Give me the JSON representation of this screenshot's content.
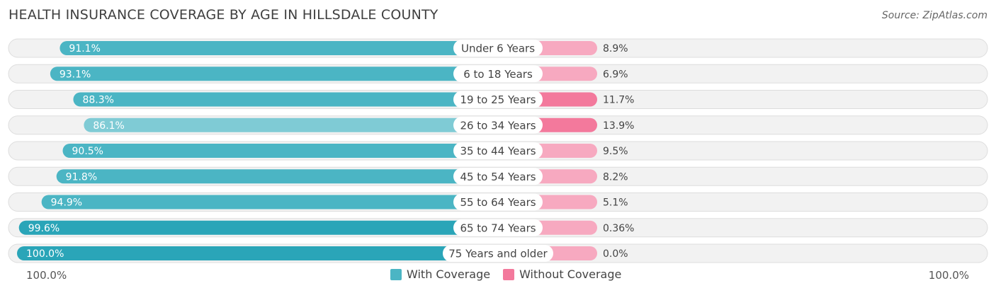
{
  "chart_data": {
    "type": "bar",
    "orientation": "horizontal-diverging",
    "title": "HEALTH INSURANCE COVERAGE BY AGE IN HILLSDALE COUNTY",
    "source": "Source: ZipAtlas.com",
    "categories": [
      "Under 6 Years",
      "6 to 18 Years",
      "19 to 25 Years",
      "26 to 34 Years",
      "35 to 44 Years",
      "45 to 54 Years",
      "55 to 64 Years",
      "65 to 74 Years",
      "75 Years and older"
    ],
    "series": [
      {
        "name": "With Coverage",
        "values": [
          91.1,
          93.1,
          88.3,
          86.1,
          90.5,
          91.8,
          94.9,
          99.6,
          100.0
        ],
        "labels": [
          "91.1%",
          "93.1%",
          "88.3%",
          "86.1%",
          "90.5%",
          "91.8%",
          "94.9%",
          "99.6%",
          "100.0%"
        ]
      },
      {
        "name": "Without Coverage",
        "values": [
          8.9,
          6.9,
          11.7,
          13.9,
          9.5,
          8.2,
          5.1,
          0.36,
          0.0
        ],
        "labels": [
          "8.9%",
          "6.9%",
          "11.7%",
          "13.9%",
          "9.5%",
          "8.2%",
          "5.1%",
          "0.36%",
          "0.0%"
        ]
      }
    ],
    "xlim": [
      0,
      100
    ],
    "axis_left_label": "100.0%",
    "axis_right_label": "100.0%",
    "legend": [
      "With Coverage",
      "Without Coverage"
    ],
    "colors": {
      "with_coverage": "#4bb5c4",
      "with_coverage_strong": "#2aa5b8",
      "with_coverage_light": "#7fcbd5",
      "without_coverage": "#f3799c",
      "without_coverage_light": "#f7a9c0",
      "row_background": "#f2f2f2",
      "row_border": "#dddddd"
    }
  }
}
